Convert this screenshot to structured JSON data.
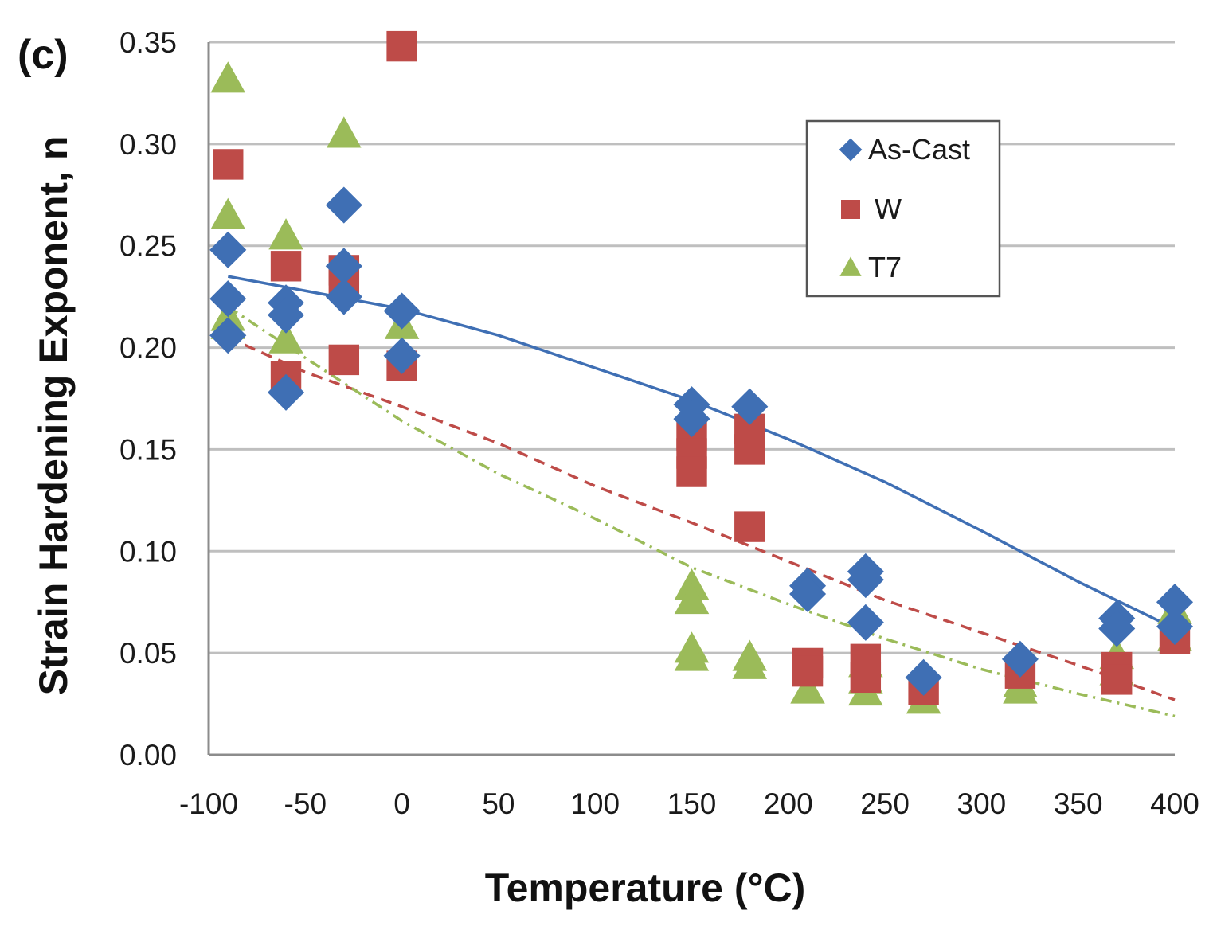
{
  "chart_data": {
    "type": "scatter",
    "panel_label": "(c)",
    "title": "",
    "xlabel": "Temperature (°C)",
    "ylabel": "Strain Hardening Exponent, n",
    "xlim": [
      -100,
      400
    ],
    "ylim": [
      0.0,
      0.35
    ],
    "x_ticks": [
      -100,
      -50,
      0,
      50,
      100,
      150,
      200,
      250,
      300,
      350,
      400
    ],
    "x_tick_labels": [
      "-100",
      "-50",
      "0",
      "50",
      "100",
      "150",
      "200",
      "250",
      "300",
      "350",
      "400"
    ],
    "y_ticks": [
      0.0,
      0.05,
      0.1,
      0.15,
      0.2,
      0.25,
      0.3,
      0.35
    ],
    "y_tick_labels": [
      "0.00",
      "0.05",
      "0.10",
      "0.15",
      "0.20",
      "0.25",
      "0.30",
      "0.35"
    ],
    "grid": "horizontal",
    "legend_position": "top-right",
    "series": [
      {
        "name": "As-Cast",
        "marker": "diamond",
        "color": "#3f6fb4",
        "points": [
          [
            -90,
            0.248
          ],
          [
            -90,
            0.224
          ],
          [
            -90,
            0.206
          ],
          [
            -60,
            0.222
          ],
          [
            -60,
            0.216
          ],
          [
            -60,
            0.178
          ],
          [
            -30,
            0.27
          ],
          [
            -30,
            0.24
          ],
          [
            -30,
            0.225
          ],
          [
            0,
            0.218
          ],
          [
            0,
            0.196
          ],
          [
            150,
            0.172
          ],
          [
            150,
            0.165
          ],
          [
            180,
            0.171
          ],
          [
            210,
            0.083
          ],
          [
            210,
            0.079
          ],
          [
            240,
            0.09
          ],
          [
            240,
            0.086
          ],
          [
            240,
            0.065
          ],
          [
            270,
            0.038
          ],
          [
            320,
            0.047
          ],
          [
            370,
            0.067
          ],
          [
            370,
            0.062
          ],
          [
            400,
            0.075
          ],
          [
            400,
            0.063
          ]
        ],
        "trend": {
          "style": "solid",
          "points": [
            [
              -90,
              0.235
            ],
            [
              0,
              0.219
            ],
            [
              50,
              0.206
            ],
            [
              100,
              0.19
            ],
            [
              150,
              0.174
            ],
            [
              200,
              0.155
            ],
            [
              250,
              0.134
            ],
            [
              300,
              0.11
            ],
            [
              350,
              0.085
            ],
            [
              400,
              0.062
            ]
          ]
        }
      },
      {
        "name": "W",
        "marker": "square",
        "color": "#be4b48",
        "points": [
          [
            -90,
            0.29
          ],
          [
            -60,
            0.24
          ],
          [
            -60,
            0.186
          ],
          [
            -30,
            0.238
          ],
          [
            -30,
            0.232
          ],
          [
            -30,
            0.194
          ],
          [
            0,
            0.348
          ],
          [
            0,
            0.191
          ],
          [
            150,
            0.157
          ],
          [
            150,
            0.148
          ],
          [
            150,
            0.139
          ],
          [
            180,
            0.16
          ],
          [
            180,
            0.15
          ],
          [
            180,
            0.112
          ],
          [
            210,
            0.045
          ],
          [
            210,
            0.041
          ],
          [
            240,
            0.047
          ],
          [
            240,
            0.038
          ],
          [
            270,
            0.032
          ],
          [
            320,
            0.04
          ],
          [
            370,
            0.043
          ],
          [
            370,
            0.037
          ],
          [
            400,
            0.057
          ]
        ],
        "trend": {
          "style": "dashed",
          "points": [
            [
              -90,
              0.205
            ],
            [
              -50,
              0.188
            ],
            [
              0,
              0.171
            ],
            [
              50,
              0.153
            ],
            [
              100,
              0.132
            ],
            [
              150,
              0.114
            ],
            [
              200,
              0.095
            ],
            [
              250,
              0.076
            ],
            [
              300,
              0.06
            ],
            [
              350,
              0.044
            ],
            [
              400,
              0.027
            ]
          ]
        }
      },
      {
        "name": "T7",
        "marker": "triangle",
        "color": "#9bbb59",
        "points": [
          [
            -90,
            0.332
          ],
          [
            -90,
            0.265
          ],
          [
            -90,
            0.215
          ],
          [
            -90,
            0.211
          ],
          [
            -60,
            0.255
          ],
          [
            -60,
            0.204
          ],
          [
            -30,
            0.305
          ],
          [
            0,
            0.211
          ],
          [
            150,
            0.083
          ],
          [
            150,
            0.076
          ],
          [
            150,
            0.052
          ],
          [
            150,
            0.048
          ],
          [
            180,
            0.048
          ],
          [
            180,
            0.044
          ],
          [
            210,
            0.032
          ],
          [
            240,
            0.045
          ],
          [
            240,
            0.037
          ],
          [
            240,
            0.031
          ],
          [
            270,
            0.027
          ],
          [
            320,
            0.035
          ],
          [
            320,
            0.032
          ],
          [
            370,
            0.049
          ],
          [
            370,
            0.041
          ],
          [
            400,
            0.071
          ],
          [
            400,
            0.058
          ]
        ],
        "trend": {
          "style": "dash-dot",
          "points": [
            [
              -90,
              0.22
            ],
            [
              -50,
              0.195
            ],
            [
              0,
              0.164
            ],
            [
              50,
              0.138
            ],
            [
              100,
              0.116
            ],
            [
              150,
              0.092
            ],
            [
              200,
              0.074
            ],
            [
              250,
              0.057
            ],
            [
              300,
              0.042
            ],
            [
              350,
              0.03
            ],
            [
              400,
              0.019
            ]
          ]
        }
      }
    ]
  }
}
